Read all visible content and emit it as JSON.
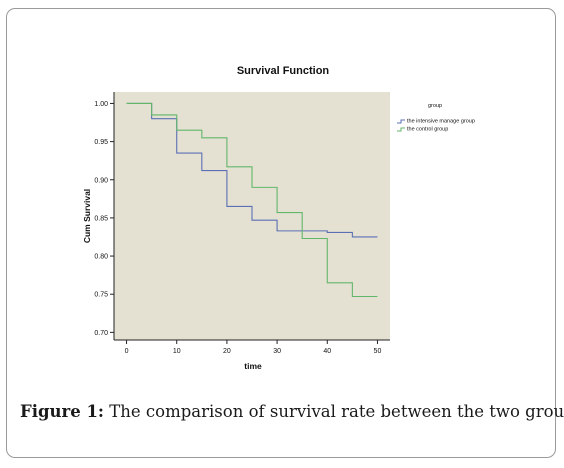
{
  "figure": {
    "caption_prefix": "Figure 1:",
    "caption_text": " The comparison of survival rate between the two groups."
  },
  "chart_data": {
    "type": "line",
    "step": true,
    "title": "Survival Function",
    "xlabel": "time",
    "ylabel": "Cum Survival",
    "xlim": [
      -2.5,
      52.5
    ],
    "ylim": [
      0.69,
      1.015
    ],
    "xticks": [
      0,
      10,
      20,
      30,
      40,
      50
    ],
    "yticks": [
      0.7,
      0.75,
      0.8,
      0.85,
      0.9,
      0.95,
      1.0
    ],
    "ytick_labels": [
      "0.70",
      "0.75",
      "0.80",
      "0.85",
      "0.90",
      "0.95",
      "1.00"
    ],
    "background": "#e4e1d3",
    "grid": false,
    "legend": {
      "title": "group",
      "placement": "right"
    },
    "series": [
      {
        "name": "the intensive manage group",
        "color": "#5b6fb4",
        "x": [
          0,
          5,
          10,
          15,
          20,
          25,
          30,
          40,
          45,
          50
        ],
        "y": [
          1.0,
          0.98,
          0.935,
          0.912,
          0.865,
          0.847,
          0.833,
          0.831,
          0.825,
          0.825
        ]
      },
      {
        "name": "the control group",
        "color": "#62b66a",
        "x": [
          0,
          5,
          10,
          15,
          20,
          25,
          30,
          35,
          40,
          45,
          50
        ],
        "y": [
          1.0,
          0.985,
          0.965,
          0.955,
          0.917,
          0.89,
          0.857,
          0.823,
          0.765,
          0.747,
          0.747
        ]
      }
    ]
  }
}
